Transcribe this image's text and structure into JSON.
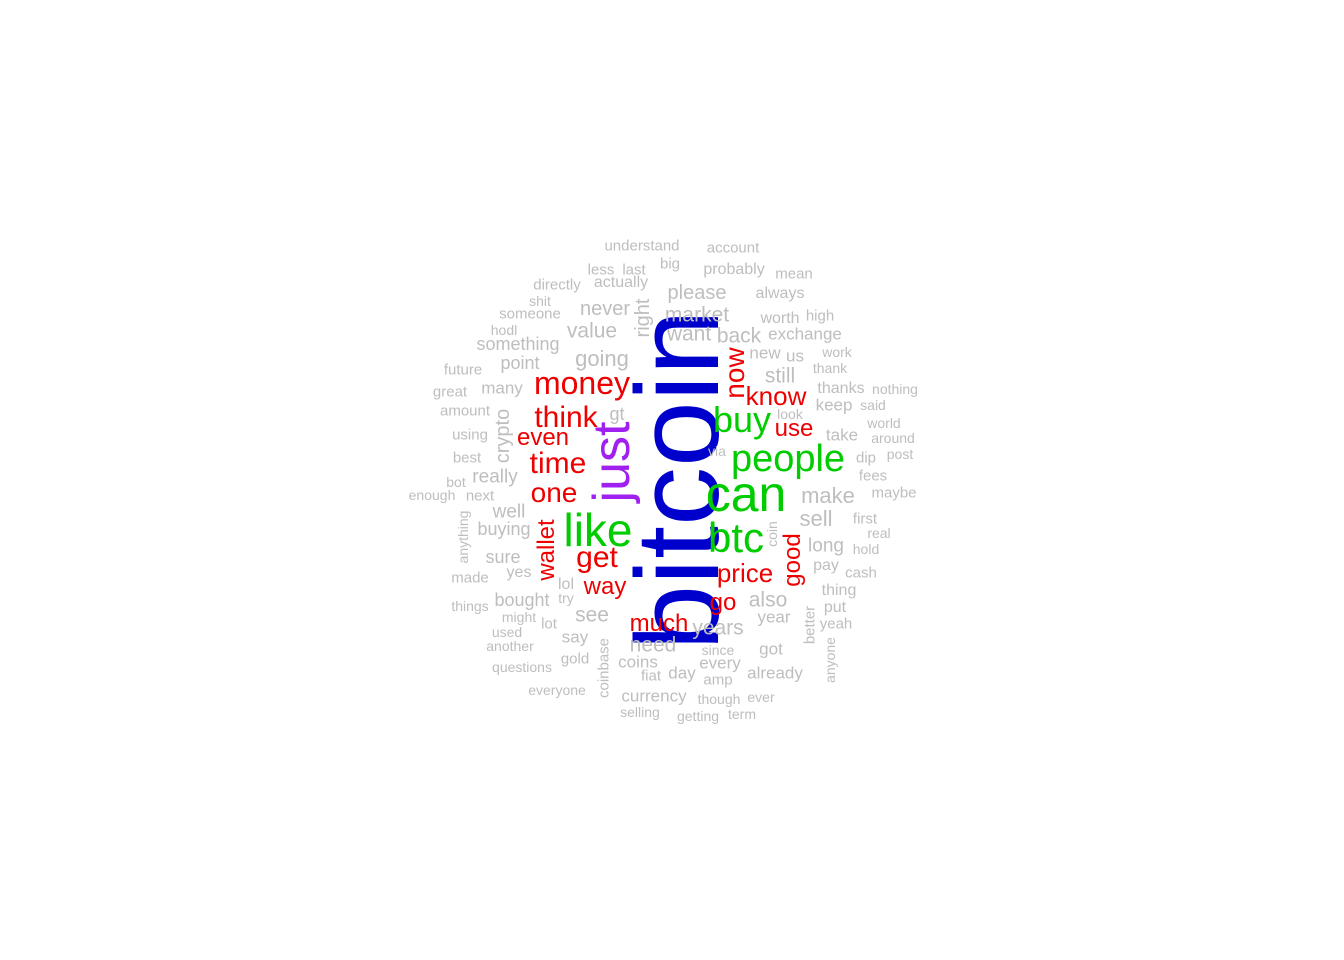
{
  "chart_data": {
    "type": "wordcloud",
    "colors": {
      "top": "#0000cc",
      "second": "#a020f0",
      "third": "#00cc00",
      "fourth": "#ee0000",
      "rest": "#bebebe"
    },
    "words": [
      {
        "text": "bitcoin",
        "tier": "top",
        "rot": true
      },
      {
        "text": "just",
        "tier": "second",
        "rot": true
      },
      {
        "text": "can",
        "tier": "third"
      },
      {
        "text": "like",
        "tier": "third"
      },
      {
        "text": "btc",
        "tier": "third"
      },
      {
        "text": "people",
        "tier": "third"
      },
      {
        "text": "buy",
        "tier": "third"
      },
      {
        "text": "money",
        "tier": "fourth"
      },
      {
        "text": "think",
        "tier": "fourth"
      },
      {
        "text": "time",
        "tier": "fourth"
      },
      {
        "text": "get",
        "tier": "fourth"
      },
      {
        "text": "one",
        "tier": "fourth"
      },
      {
        "text": "price",
        "tier": "fourth"
      },
      {
        "text": "now",
        "tier": "fourth",
        "rot": true
      },
      {
        "text": "know",
        "tier": "fourth"
      },
      {
        "text": "wallet",
        "tier": "fourth",
        "rot": true
      },
      {
        "text": "good",
        "tier": "fourth",
        "rot": true
      },
      {
        "text": "even",
        "tier": "fourth"
      },
      {
        "text": "much",
        "tier": "fourth"
      },
      {
        "text": "way",
        "tier": "fourth"
      },
      {
        "text": "use",
        "tier": "fourth"
      },
      {
        "text": "go",
        "tier": "fourth"
      },
      {
        "text": "make",
        "tier": "rest"
      },
      {
        "text": "going",
        "tier": "rest"
      },
      {
        "text": "sell",
        "tier": "rest"
      },
      {
        "text": "value",
        "tier": "rest"
      },
      {
        "text": "still",
        "tier": "rest"
      },
      {
        "text": "market",
        "tier": "rest"
      },
      {
        "text": "want",
        "tier": "rest"
      },
      {
        "text": "back",
        "tier": "rest"
      },
      {
        "text": "please",
        "tier": "rest"
      },
      {
        "text": "never",
        "tier": "rest"
      },
      {
        "text": "also",
        "tier": "rest"
      },
      {
        "text": "years",
        "tier": "rest"
      },
      {
        "text": "need",
        "tier": "rest"
      },
      {
        "text": "see",
        "tier": "rest"
      },
      {
        "text": "crypto",
        "tier": "rest",
        "rot": true
      },
      {
        "text": "right",
        "tier": "rest",
        "rot": true
      },
      {
        "text": "long",
        "tier": "rest"
      },
      {
        "text": "really",
        "tier": "rest"
      },
      {
        "text": "well",
        "tier": "rest"
      },
      {
        "text": "buying",
        "tier": "rest"
      },
      {
        "text": "sure",
        "tier": "rest"
      },
      {
        "text": "bought",
        "tier": "rest"
      },
      {
        "text": "something",
        "tier": "rest"
      },
      {
        "text": "point",
        "tier": "rest"
      },
      {
        "text": "many",
        "tier": "rest"
      },
      {
        "text": "take",
        "tier": "rest"
      },
      {
        "text": "keep",
        "tier": "rest"
      },
      {
        "text": "exchange",
        "tier": "rest"
      },
      {
        "text": "new",
        "tier": "rest"
      },
      {
        "text": "us",
        "tier": "rest"
      },
      {
        "text": "say",
        "tier": "rest"
      },
      {
        "text": "year",
        "tier": "rest"
      },
      {
        "text": "got",
        "tier": "rest"
      },
      {
        "text": "already",
        "tier": "rest"
      },
      {
        "text": "day",
        "tier": "rest"
      },
      {
        "text": "every",
        "tier": "rest"
      },
      {
        "text": "coins",
        "tier": "rest"
      },
      {
        "text": "currency",
        "tier": "rest"
      },
      {
        "text": "thanks",
        "tier": "rest"
      },
      {
        "text": "pay",
        "tier": "rest"
      },
      {
        "text": "thing",
        "tier": "rest"
      },
      {
        "text": "put",
        "tier": "rest"
      },
      {
        "text": "yes",
        "tier": "rest"
      },
      {
        "text": "lol",
        "tier": "rest"
      },
      {
        "text": "gt",
        "tier": "rest"
      },
      {
        "text": "actually",
        "tier": "rest"
      },
      {
        "text": "probably",
        "tier": "rest"
      },
      {
        "text": "always",
        "tier": "rest"
      },
      {
        "text": "worth",
        "tier": "rest"
      },
      {
        "text": "high",
        "tier": "rest"
      },
      {
        "text": "someone",
        "tier": "rest"
      },
      {
        "text": "directly",
        "tier": "rest"
      },
      {
        "text": "less",
        "tier": "rest"
      },
      {
        "text": "last",
        "tier": "rest"
      },
      {
        "text": "big",
        "tier": "rest"
      },
      {
        "text": "understand",
        "tier": "rest"
      },
      {
        "text": "account",
        "tier": "rest"
      },
      {
        "text": "mean",
        "tier": "rest"
      },
      {
        "text": "shit",
        "tier": "rest"
      },
      {
        "text": "hodl",
        "tier": "rest"
      },
      {
        "text": "future",
        "tier": "rest"
      },
      {
        "text": "great",
        "tier": "rest"
      },
      {
        "text": "amount",
        "tier": "rest"
      },
      {
        "text": "using",
        "tier": "rest"
      },
      {
        "text": "best",
        "tier": "rest"
      },
      {
        "text": "bot",
        "tier": "rest"
      },
      {
        "text": "enough",
        "tier": "rest"
      },
      {
        "text": "next",
        "tier": "rest"
      },
      {
        "text": "anything",
        "tier": "rest",
        "rot": true
      },
      {
        "text": "made",
        "tier": "rest"
      },
      {
        "text": "things",
        "tier": "rest"
      },
      {
        "text": "might",
        "tier": "rest"
      },
      {
        "text": "try",
        "tier": "rest"
      },
      {
        "text": "lot",
        "tier": "rest"
      },
      {
        "text": "used",
        "tier": "rest"
      },
      {
        "text": "another",
        "tier": "rest"
      },
      {
        "text": "questions",
        "tier": "rest"
      },
      {
        "text": "gold",
        "tier": "rest"
      },
      {
        "text": "everyone",
        "tier": "rest"
      },
      {
        "text": "coinbase",
        "tier": "rest",
        "rot": true
      },
      {
        "text": "selling",
        "tier": "rest"
      },
      {
        "text": "fiat",
        "tier": "rest"
      },
      {
        "text": "amp",
        "tier": "rest"
      },
      {
        "text": "since",
        "tier": "rest"
      },
      {
        "text": "though",
        "tier": "rest"
      },
      {
        "text": "ever",
        "tier": "rest"
      },
      {
        "text": "getting",
        "tier": "rest"
      },
      {
        "text": "term",
        "tier": "rest"
      },
      {
        "text": "look",
        "tier": "rest"
      },
      {
        "text": "via",
        "tier": "rest"
      },
      {
        "text": "coin",
        "tier": "rest",
        "rot": true
      },
      {
        "text": "work",
        "tier": "rest"
      },
      {
        "text": "thank",
        "tier": "rest"
      },
      {
        "text": "nothing",
        "tier": "rest"
      },
      {
        "text": "said",
        "tier": "rest"
      },
      {
        "text": "world",
        "tier": "rest"
      },
      {
        "text": "around",
        "tier": "rest"
      },
      {
        "text": "dip",
        "tier": "rest"
      },
      {
        "text": "post",
        "tier": "rest"
      },
      {
        "text": "fees",
        "tier": "rest"
      },
      {
        "text": "maybe",
        "tier": "rest"
      },
      {
        "text": "first",
        "tier": "rest"
      },
      {
        "text": "real",
        "tier": "rest"
      },
      {
        "text": "hold",
        "tier": "rest"
      },
      {
        "text": "cash",
        "tier": "rest"
      },
      {
        "text": "better",
        "tier": "rest",
        "rot": true
      },
      {
        "text": "yeah",
        "tier": "rest"
      },
      {
        "text": "anyone",
        "tier": "rest",
        "rot": true
      }
    ]
  }
}
